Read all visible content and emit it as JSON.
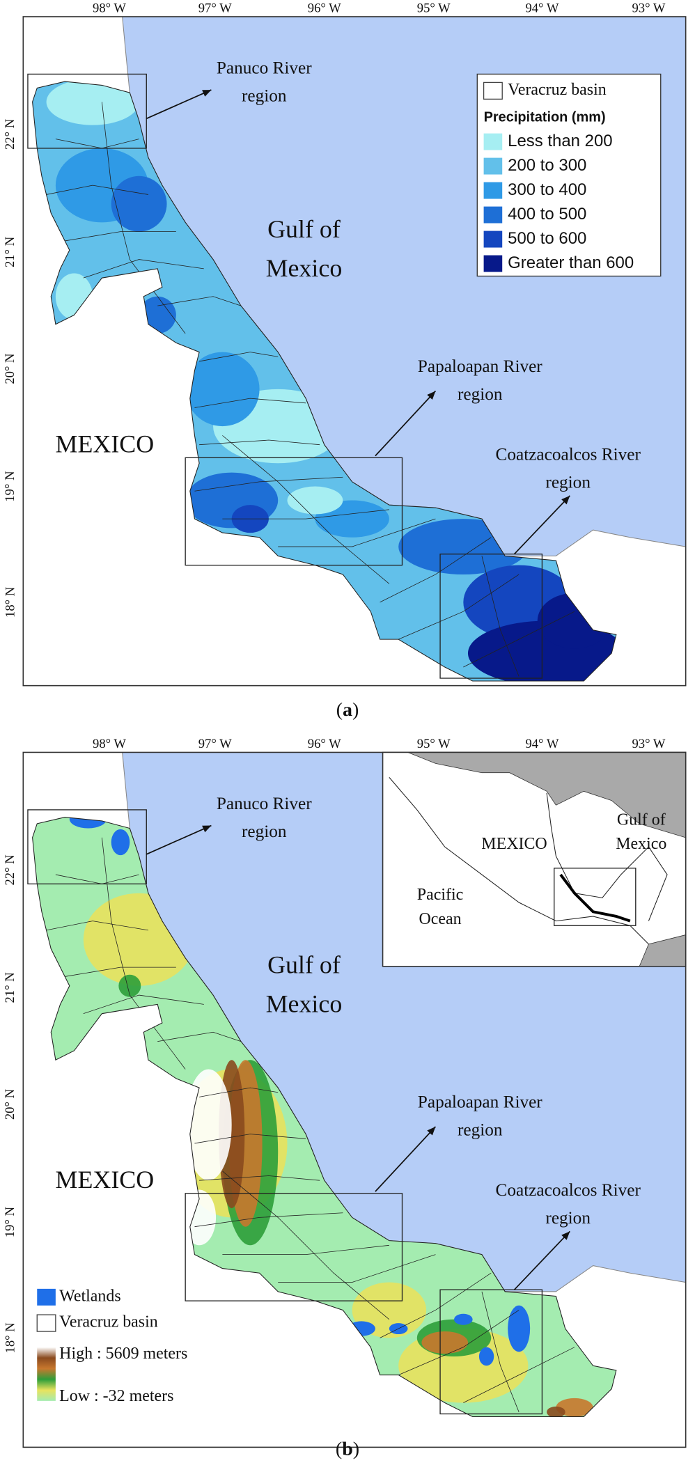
{
  "panels": [
    {
      "caption": [
        "(",
        "a",
        ")"
      ],
      "longitude_ticks": [
        "98° W",
        "97° W",
        "96° W",
        "95° W",
        "94° W",
        "93° W"
      ],
      "latitude_ticks": [
        "22° N",
        "21° N",
        "20° N",
        "19° N",
        "18° N"
      ],
      "sea_label": [
        "Gulf of",
        "Mexico"
      ],
      "country_label": "MEXICO",
      "regions": [
        [
          "Panuco River",
          "region"
        ],
        [
          "Papaloapan River",
          "region"
        ],
        [
          "Coatzacoalcos River",
          "region"
        ]
      ],
      "legend": {
        "basin": "Veracruz basin",
        "title": "Precipitation (mm)",
        "classes": [
          {
            "label": "Less than 200",
            "color": "#a6eef2"
          },
          {
            "label": "200 to 300",
            "color": "#62c0ea"
          },
          {
            "label": "300 to 400",
            "color": "#2f9ae6"
          },
          {
            "label": "400 to 500",
            "color": "#1e6fd6"
          },
          {
            "label": "500 to 600",
            "color": "#1446bf"
          },
          {
            "label": "Greater than 600",
            "color": "#07198a"
          }
        ]
      }
    },
    {
      "caption": [
        "(",
        "b",
        ")"
      ],
      "longitude_ticks": [
        "98° W",
        "97° W",
        "96° W",
        "95° W",
        "94° W",
        "93° W"
      ],
      "latitude_ticks": [
        "22° N",
        "21° N",
        "20° N",
        "19° N",
        "18° N"
      ],
      "sea_label": [
        "Gulf of",
        "Mexico"
      ],
      "country_label": "MEXICO",
      "regions": [
        [
          "Panuco River",
          "region"
        ],
        [
          "Papaloapan River",
          "region"
        ],
        [
          "Coatzacoalcos River",
          "region"
        ]
      ],
      "inset": {
        "country": "MEXICO",
        "sea": [
          "Gulf of",
          "Mexico"
        ],
        "ocean": [
          "Pacific",
          "Ocean"
        ]
      },
      "legend": {
        "wetlands": {
          "label": "Wetlands",
          "color": "#1f6fe8"
        },
        "basin": "Veracruz basin",
        "elevation_high": "High : 5609 meters",
        "elevation_low": "Low : -32 meters",
        "elevation_colors": [
          "#ffffff",
          "#8a4a1e",
          "#c8782e",
          "#2e9e3a",
          "#e8e25e",
          "#a4ecb0"
        ]
      }
    }
  ]
}
